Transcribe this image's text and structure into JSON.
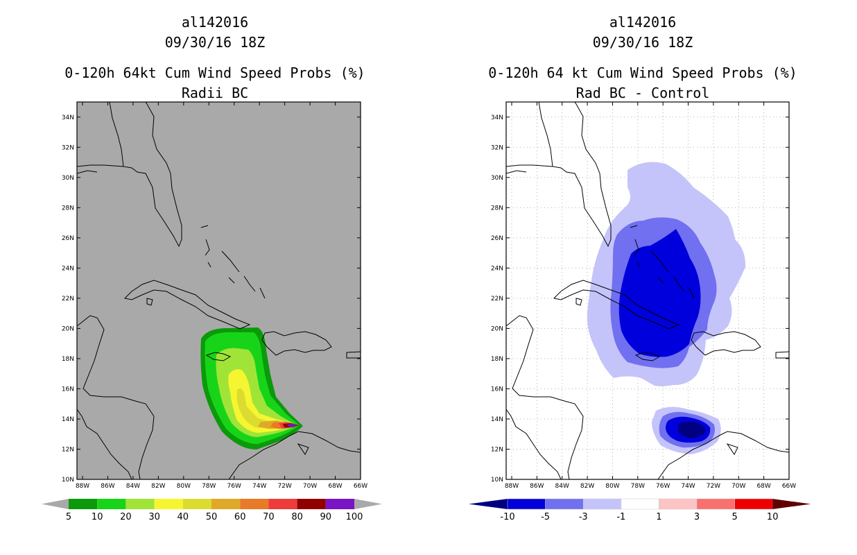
{
  "left_panel": {
    "title_line1": "al142016",
    "title_line2": "09/30/16 18Z",
    "title_line3": "0-120h 64kt Cum Wind Speed Probs (%)",
    "title_line4": "Radii BC",
    "colorbar_labels": [
      "5",
      "10",
      "20",
      "30",
      "40",
      "50",
      "60",
      "70",
      "80",
      "90",
      "100"
    ],
    "colorbar_colors": [
      "#0a9a0a",
      "#18d418",
      "#a0e438",
      "#f6f630",
      "#dcdc30",
      "#e0a828",
      "#e87a28",
      "#ee3c3c",
      "#900000",
      "#7a14c4"
    ],
    "background_color": "#a9a9a9"
  },
  "right_panel": {
    "title_line1": "al142016",
    "title_line2": "09/30/16 18Z",
    "title_line3": "0-120h 64 kt Cum Wind Speed Probs (%)",
    "title_line4": "Rad BC - Control",
    "colorbar_labels": [
      "-10",
      "-5",
      "-3",
      "-1",
      "1",
      "3",
      "5",
      "10"
    ],
    "colorbar_colors": [
      "#0000dc",
      "#7070f0",
      "#c4c4fa",
      "#ffffff",
      "#fcc4c4",
      "#f87070",
      "#ee0000"
    ],
    "colorbar_end_colors": [
      "#000080",
      "#600000"
    ]
  },
  "axes": {
    "lat_labels": [
      "10N",
      "12N",
      "14N",
      "16N",
      "18N",
      "20N",
      "22N",
      "24N",
      "26N",
      "28N",
      "30N",
      "32N",
      "34N"
    ],
    "lon_labels": [
      "88W",
      "86W",
      "84W",
      "82W",
      "80W",
      "78W",
      "76W",
      "74W",
      "72W",
      "70W",
      "68W",
      "66W"
    ]
  }
}
